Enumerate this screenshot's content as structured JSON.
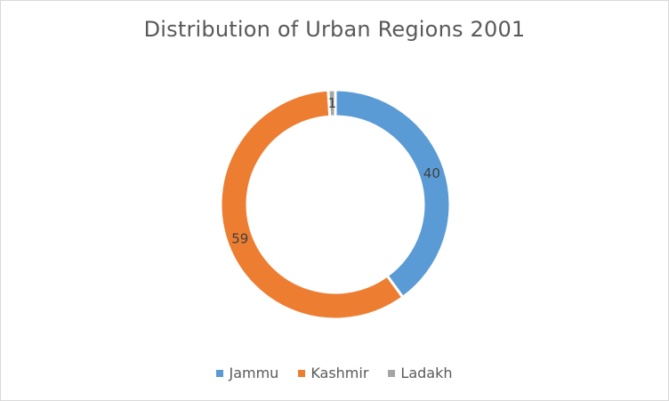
{
  "chart_data": {
    "type": "pie",
    "variant": "doughnut",
    "title": "Distribution of Urban Regions 2001",
    "categories": [
      "Jammu",
      "Kashmir",
      "Ladakh"
    ],
    "values": [
      40,
      59,
      1
    ],
    "data_labels": [
      "40",
      "59",
      "1"
    ],
    "colors": [
      "#5B9BD5",
      "#ED7D31",
      "#A5A5A5"
    ],
    "legend_position": "bottom"
  }
}
